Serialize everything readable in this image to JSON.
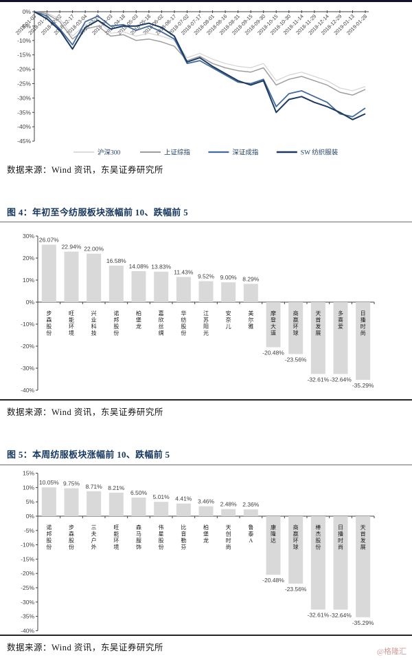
{
  "page": {
    "source_note": "数据来源：Wind 资讯，东吴证券研究所",
    "watermark": "@格隆汇"
  },
  "fig4": {
    "title": "图 4：年初至今纺服板块涨幅前 10、跌幅前 5"
  },
  "fig5": {
    "title": "图 5：本周纺服板块涨幅前 10、跌幅前 5"
  },
  "colors": {
    "bar_fill": "#d9d9d9",
    "axis": "#3f3f3f",
    "label_text": "#3f3f3f",
    "title_navy": "#17375e"
  },
  "chart_data": [
    {
      "type": "line",
      "title": "",
      "x": [
        "2018-01-03",
        "2018-01-18",
        "2018-02-02",
        "2018-02-17",
        "2018-03-04",
        "2018-03-19",
        "2018-04-03",
        "2018-04-18",
        "2018-05-03",
        "2018-05-18",
        "2018-06-02",
        "2018-06-17",
        "2018-07-02",
        "2018-07-17",
        "2018-08-01",
        "2018-08-16",
        "2018-08-31",
        "2018-09-15",
        "2018-09-30",
        "2018-10-15",
        "2018-10-30",
        "2018-11-14",
        "2018-11-29",
        "2018-12-14",
        "2018-12-29",
        "2019-01-13",
        "2019-01-28"
      ],
      "ylim": [
        -45,
        0
      ],
      "ytick_step": 5,
      "yticks": [
        "0%",
        "-5%",
        "-10%",
        "-15%",
        "-20%",
        "-25%",
        "-30%",
        "-35%",
        "-40%",
        "-45%"
      ],
      "legend_position": "bottom",
      "grid": false,
      "series": [
        {
          "name": "沪深300",
          "color": "#d4d4d4",
          "width": 1.2,
          "values": [
            0,
            -0.5,
            -2.5,
            -8.5,
            -4.5,
            -3,
            -7.5,
            -7,
            -8.5,
            -7.5,
            -8.5,
            -10,
            -16,
            -14.5,
            -16.5,
            -18,
            -19,
            -19.5,
            -18,
            -24,
            -22,
            -21,
            -22.5,
            -24,
            -26.5,
            -27.5,
            -26
          ]
        },
        {
          "name": "上证综指",
          "color": "#9e9e9e",
          "width": 1.5,
          "values": [
            0,
            -0.8,
            -3.5,
            -9.5,
            -6,
            -5,
            -8.5,
            -8,
            -10,
            -9.5,
            -10.5,
            -12,
            -17,
            -15.5,
            -18,
            -19.5,
            -20.5,
            -21,
            -19.5,
            -25.5,
            -23.5,
            -22.5,
            -24,
            -25.5,
            -28,
            -29,
            -27
          ]
        },
        {
          "name": "深证成指",
          "color": "#44699b",
          "width": 1.8,
          "values": [
            0,
            -1.5,
            -6,
            -11.5,
            -3.5,
            -1.5,
            -5,
            -4.5,
            -6.5,
            -5,
            -7,
            -9.5,
            -18,
            -17,
            -19.5,
            -22,
            -24.5,
            -25,
            -23.5,
            -33,
            -28.5,
            -27.5,
            -29.5,
            -31.5,
            -35.5,
            -36.5,
            -33.5
          ]
        },
        {
          "name": "SW 纺织服装",
          "color": "#1b3a5f",
          "width": 2,
          "values": [
            0,
            -2.5,
            -6.5,
            -13,
            -5.5,
            -3,
            -6,
            -5,
            -5,
            -4,
            -5.5,
            -8.5,
            -17.5,
            -16,
            -19,
            -21.5,
            -24,
            -25.5,
            -24,
            -35,
            -30.5,
            -29.5,
            -31.5,
            -33,
            -35,
            -37.5,
            -35.5
          ]
        }
      ]
    },
    {
      "type": "bar",
      "title": "图 4：年初至今纺服板块涨幅前 10、跌幅前 5",
      "categories": [
        "步森股份",
        "旺能环境",
        "兴业科技",
        "诺邦股份",
        "柏堡龙",
        "嘉欣丝绸",
        "华纺股份",
        "江苏阳光",
        "安奈儿",
        "美尔雅",
        "摩登大道",
        "商赢环球",
        "天首发展",
        "多喜爱",
        "日播时尚"
      ],
      "values": [
        26.07,
        22.94,
        22.0,
        16.58,
        14.08,
        13.83,
        11.43,
        9.52,
        9.0,
        8.29,
        -20.48,
        -23.56,
        -32.61,
        -32.64,
        -35.29
      ],
      "value_labels": [
        "26.07%",
        "22.94%",
        "22.00%",
        "16.58%",
        "14.08%",
        "13.83%",
        "11.43%",
        "9.52%",
        "9.00%",
        "8.29%",
        "-20.48%",
        "-23.56%",
        "-32.61%",
        "-32.64%",
        "-35.29%"
      ],
      "ylim": [
        -40,
        30
      ],
      "ytick_step": 10,
      "yticks": [
        "30%",
        "20%",
        "10%",
        "0%",
        "-10%",
        "-20%",
        "-30%",
        "-40%"
      ],
      "bar_color": "#d9d9d9"
    },
    {
      "type": "bar",
      "title": "图 5：本周纺服板块涨幅前 10、跌幅前 5",
      "categories": [
        "诺邦股份",
        "步森股份",
        "三夫户外",
        "旺能环境",
        "森马服饰",
        "伟星股份",
        "比音勒芬",
        "柏堡龙",
        "天创时尚",
        "鲁泰A",
        "康隆达",
        "商赢环球",
        "棒杰股份",
        "日播时尚",
        "天首发展"
      ],
      "values": [
        10.05,
        9.75,
        8.71,
        8.21,
        6.5,
        5.01,
        4.41,
        3.46,
        2.48,
        2.36,
        -20.48,
        -23.56,
        -32.61,
        -32.64,
        -35.29
      ],
      "value_labels": [
        "10.05%",
        "9.75%",
        "8.71%",
        "8.21%",
        "6.50%",
        "5.01%",
        "4.41%",
        "3.46%",
        "2.48%",
        "2.36%",
        "-20.48%",
        "-23.56%",
        "-32.61%",
        "-32.64%",
        "-35.29%"
      ],
      "ylim": [
        -40,
        15
      ],
      "ytick_step": 5,
      "yticks": [
        "15%",
        "10%",
        "5%",
        "0%",
        "-5%",
        "-10%",
        "-15%",
        "-20%",
        "-25%",
        "-30%",
        "-35%",
        "-40%"
      ],
      "bar_color": "#d9d9d9"
    }
  ]
}
